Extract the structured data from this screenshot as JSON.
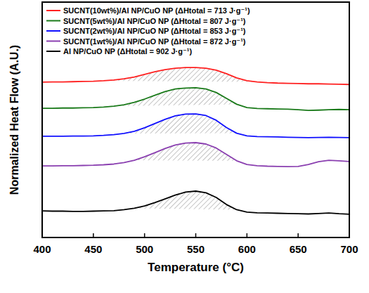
{
  "chart_data": {
    "type": "line",
    "xlabel": "Temperature (°C)",
    "ylabel": "Normalized Heat Flow (A.U.)",
    "x": [
      400,
      410,
      420,
      430,
      440,
      450,
      460,
      470,
      480,
      490,
      500,
      510,
      520,
      530,
      540,
      550,
      560,
      570,
      580,
      590,
      600,
      610,
      620,
      630,
      640,
      650,
      660,
      670,
      680,
      690,
      700
    ],
    "xlim": [
      400,
      700
    ],
    "xticks": [
      400,
      450,
      500,
      550,
      600,
      650,
      700
    ],
    "ylim": [
      0,
      100
    ],
    "tick_labels": "x",
    "grid": false,
    "legend": "upper left",
    "series": [
      {
        "name": "SUCNT(10wt%)/Al NP/CuO NP (ΔHtotal = 713 J·g⁻¹)",
        "color": "#ff2020",
        "values": [
          66.0,
          66.1,
          66.1,
          66.2,
          66.3,
          66.4,
          66.6,
          66.9,
          67.4,
          68.2,
          69.3,
          70.4,
          71.3,
          71.9,
          72.2,
          72.2,
          71.9,
          71.1,
          69.6,
          67.8,
          66.6,
          66.1,
          65.8,
          65.6,
          65.5,
          65.4,
          65.3,
          65.3,
          65.2,
          65.1,
          65.0
        ]
      },
      {
        "name": "SUCNT(5wt%)/Al NP/CuO NP (ΔHtotal = 807 J·g⁻¹)",
        "color": "#1a7a1a",
        "values": [
          54.9,
          54.9,
          55.0,
          55.0,
          55.1,
          55.2,
          55.4,
          55.8,
          56.4,
          57.4,
          58.8,
          60.4,
          62.0,
          63.1,
          63.5,
          63.6,
          63.1,
          61.6,
          59.1,
          56.6,
          55.2,
          54.8,
          54.7,
          54.6,
          54.5,
          54.3,
          54.0,
          54.1,
          54.3,
          54.4,
          54.3
        ]
      },
      {
        "name": "SUCNT(2wt%)/Al NP/CuO NP (ΔHtotal = 853 J·g⁻¹)",
        "color": "#1010ff",
        "values": [
          43.0,
          43.0,
          43.0,
          43.1,
          43.1,
          43.2,
          43.4,
          43.7,
          44.2,
          45.1,
          46.6,
          48.4,
          50.2,
          51.7,
          52.4,
          52.5,
          51.8,
          49.8,
          46.7,
          44.3,
          43.2,
          42.9,
          42.8,
          42.7,
          42.6,
          42.5,
          42.4,
          42.5,
          42.6,
          42.5,
          42.4
        ]
      },
      {
        "name": "SUCNT(1wt%)/Al NP/CuO NP (ΔHtotal = 872 J·g⁻¹)",
        "color": "#8a3fb0",
        "values": [
          30.4,
          30.4,
          30.5,
          30.5,
          30.6,
          30.7,
          30.9,
          31.2,
          31.8,
          32.8,
          34.3,
          36.0,
          37.8,
          39.3,
          40.1,
          40.3,
          39.7,
          38.0,
          35.3,
          32.6,
          31.0,
          30.5,
          30.3,
          30.2,
          30.1,
          30.2,
          31.0,
          32.2,
          32.8,
          32.6,
          32.3
        ]
      },
      {
        "name": "Al NP/CuO NP (ΔHtotal = 902 J·g⁻¹)",
        "color": "#000000",
        "values": [
          11.3,
          11.2,
          11.2,
          11.1,
          11.1,
          11.2,
          11.3,
          11.4,
          11.8,
          12.4,
          13.4,
          14.8,
          16.4,
          18.0,
          19.3,
          19.7,
          19.0,
          17.0,
          14.0,
          11.8,
          10.8,
          10.5,
          10.4,
          10.3,
          10.2,
          10.1,
          10.0,
          10.2,
          10.4,
          10.1,
          9.9
        ]
      }
    ]
  }
}
